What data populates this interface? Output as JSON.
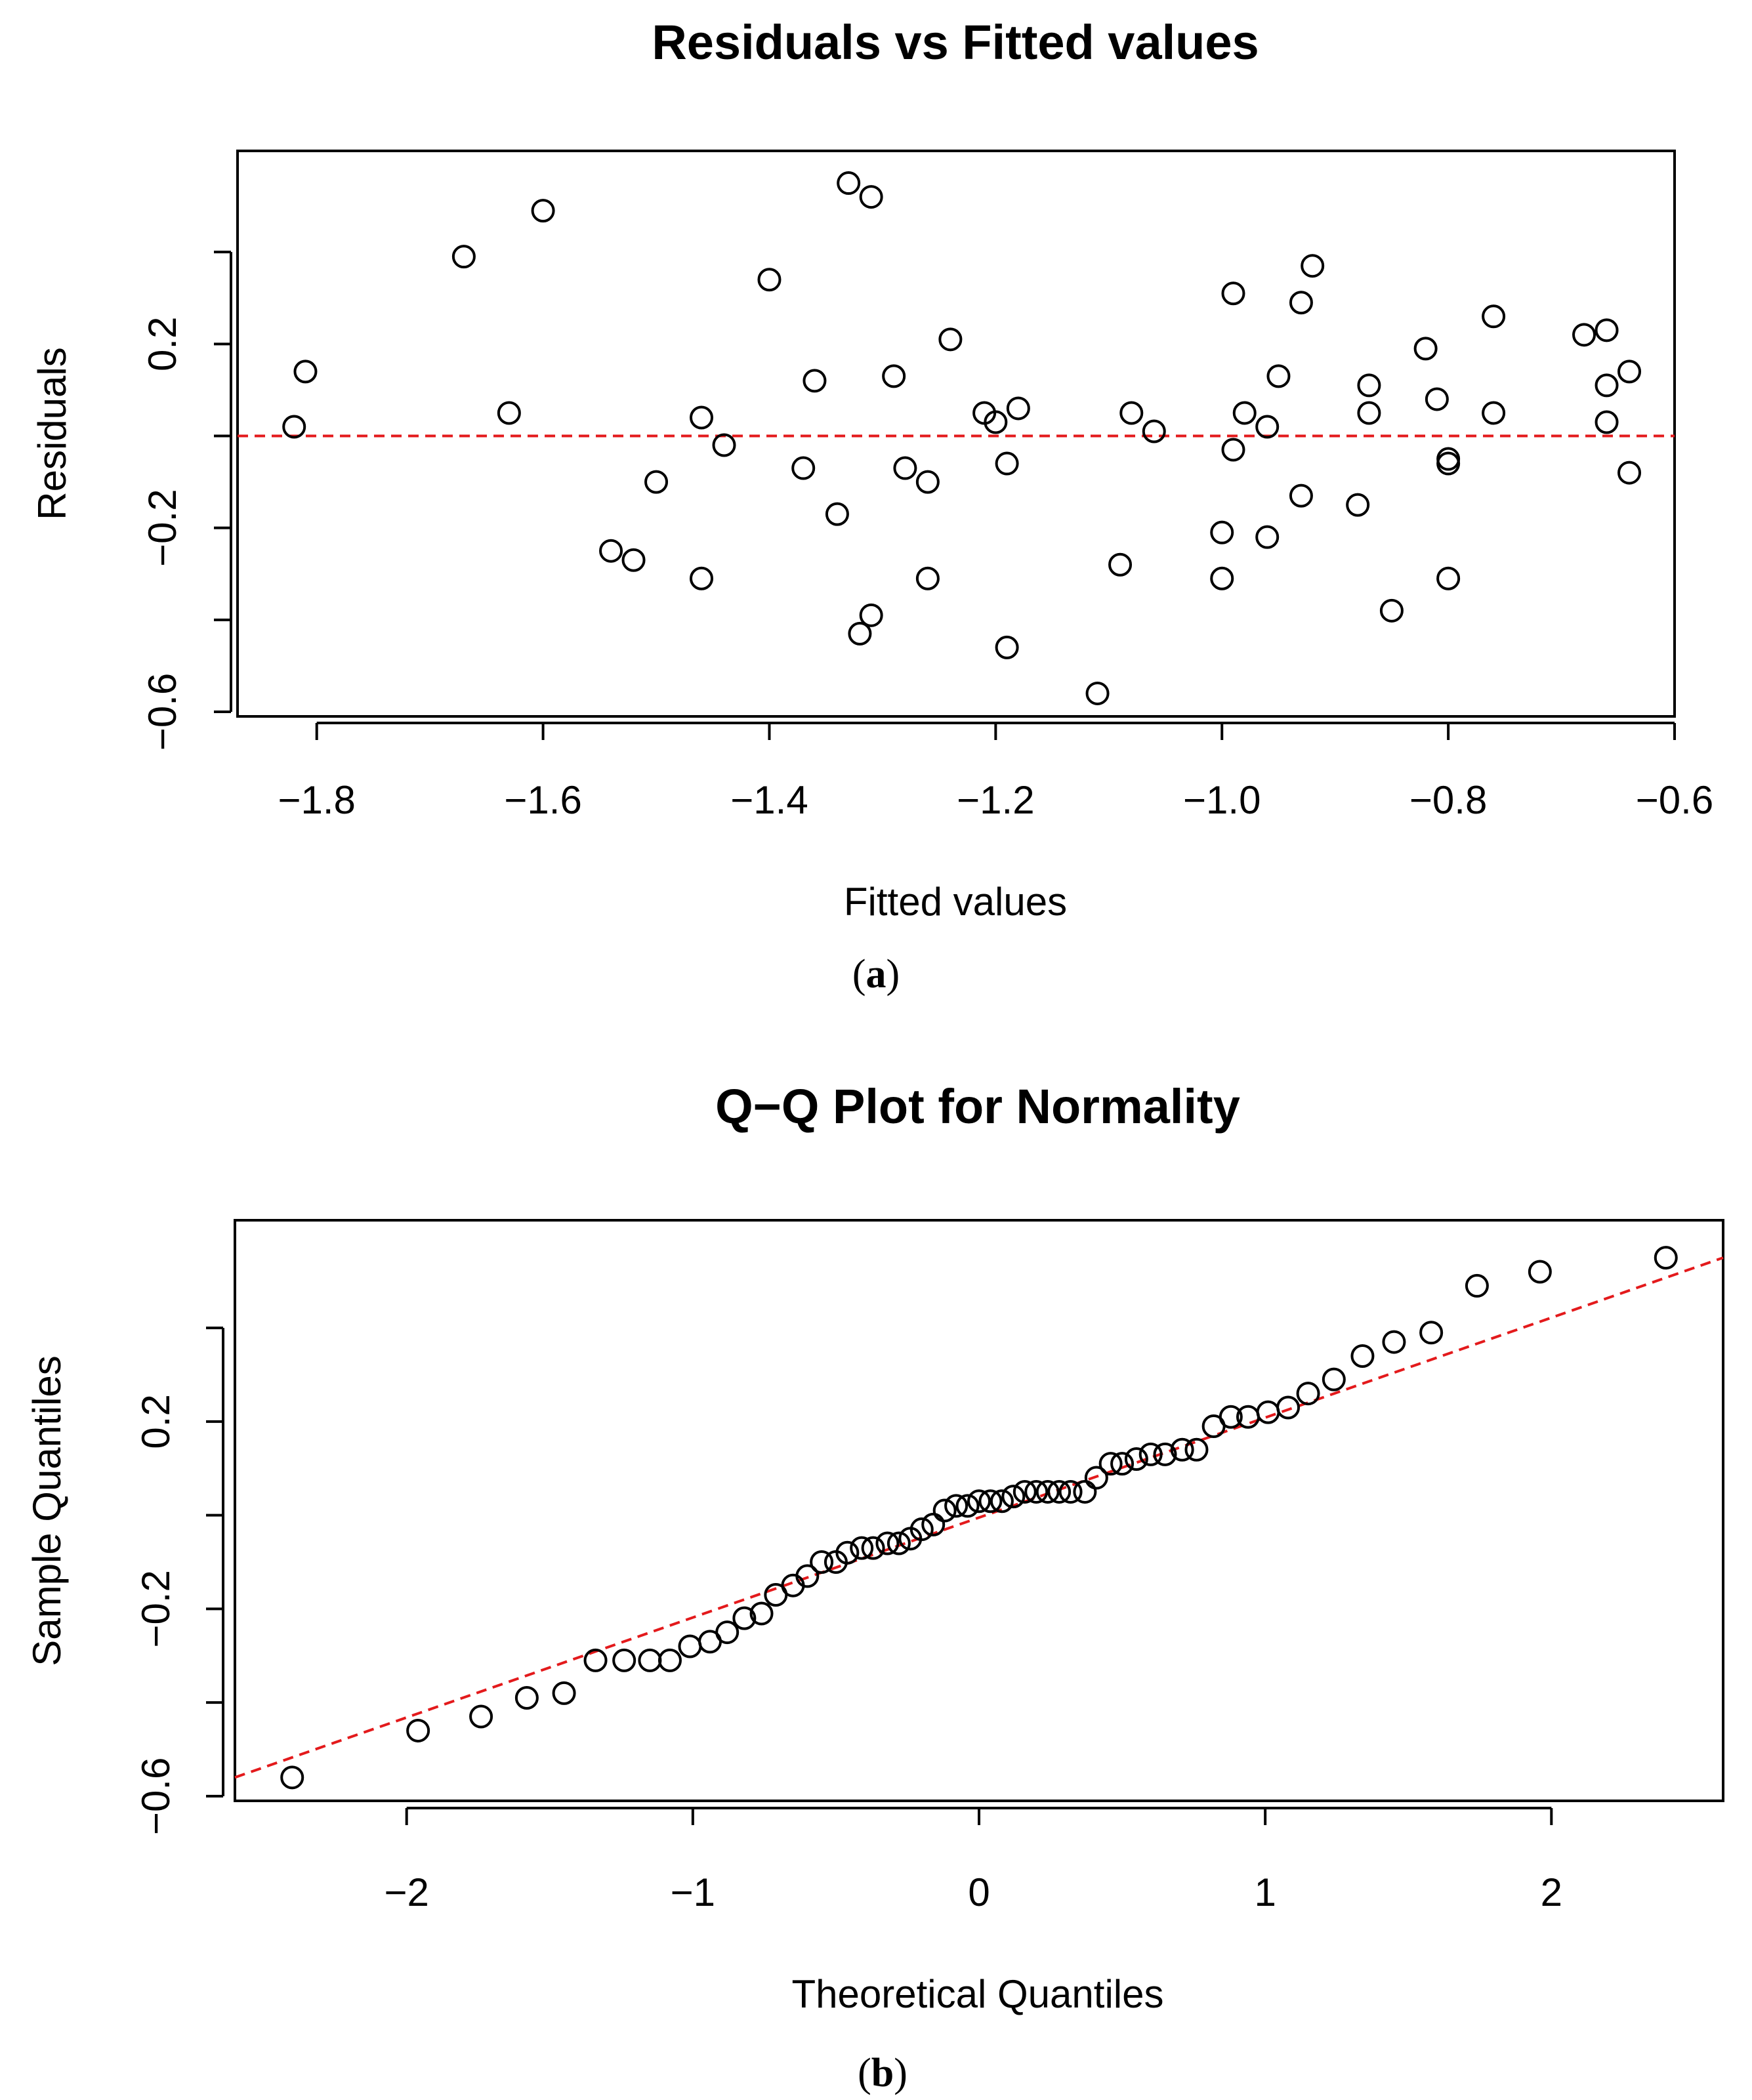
{
  "chart_data": [
    {
      "type": "scatter",
      "title": "Residuals vs Fitted values",
      "xlabel": "Fitted values",
      "ylabel": "Residuals",
      "panel_label": "a",
      "xlim": [
        -1.87,
        -0.6
      ],
      "ylim": [
        -0.6,
        0.6
      ],
      "xticks": [
        -1.8,
        -1.6,
        -1.4,
        -1.2,
        -1.0,
        -0.8,
        -0.6
      ],
      "xtick_labels": [
        "−1.8",
        "−1.6",
        "−1.4",
        "−1.2",
        "−1.0",
        "−0.8",
        "−0.6"
      ],
      "yticks": [
        -0.6,
        -0.4,
        -0.2,
        0.0,
        0.2,
        0.4
      ],
      "ytick_labels": [
        "−0.6",
        "",
        "−0.2",
        "",
        "0.2",
        ""
      ],
      "reference_line": {
        "kind": "horizontal",
        "y": 0.0,
        "color": "#e31a1c",
        "style": "dashed"
      },
      "grid": false,
      "point_color": "#000000",
      "points": [
        [
          -1.82,
          0.02
        ],
        [
          -1.81,
          0.14
        ],
        [
          -1.67,
          0.39
        ],
        [
          -1.63,
          0.05
        ],
        [
          -1.6,
          0.49
        ],
        [
          -1.54,
          -0.25
        ],
        [
          -1.52,
          -0.27
        ],
        [
          -1.5,
          -0.1
        ],
        [
          -1.46,
          0.04
        ],
        [
          -1.46,
          -0.31
        ],
        [
          -1.44,
          -0.02
        ],
        [
          -1.4,
          0.34
        ],
        [
          -1.37,
          -0.07
        ],
        [
          -1.36,
          0.12
        ],
        [
          -1.34,
          -0.17
        ],
        [
          -1.33,
          0.55
        ],
        [
          -1.32,
          -0.43
        ],
        [
          -1.31,
          0.52
        ],
        [
          -1.31,
          -0.39
        ],
        [
          -1.29,
          0.13
        ],
        [
          -1.28,
          -0.07
        ],
        [
          -1.26,
          -0.1
        ],
        [
          -1.26,
          -0.31
        ],
        [
          -1.24,
          0.21
        ],
        [
          -1.21,
          0.05
        ],
        [
          -1.2,
          0.03
        ],
        [
          -1.19,
          -0.06
        ],
        [
          -1.19,
          -0.46
        ],
        [
          -1.18,
          0.06
        ],
        [
          -1.11,
          -0.56
        ],
        [
          -1.09,
          -0.28
        ],
        [
          -1.08,
          0.05
        ],
        [
          -1.06,
          0.01
        ],
        [
          -1.0,
          -0.21
        ],
        [
          -1.0,
          -0.31
        ],
        [
          -0.99,
          0.31
        ],
        [
          -0.99,
          -0.03
        ],
        [
          -0.98,
          0.05
        ],
        [
          -0.96,
          -0.22
        ],
        [
          -0.96,
          0.02
        ],
        [
          -0.95,
          0.13
        ],
        [
          -0.93,
          0.29
        ],
        [
          -0.93,
          -0.13
        ],
        [
          -0.92,
          0.37
        ],
        [
          -0.88,
          -0.15
        ],
        [
          -0.87,
          0.11
        ],
        [
          -0.87,
          0.05
        ],
        [
          -0.85,
          -0.38
        ],
        [
          -0.82,
          0.19
        ],
        [
          -0.81,
          0.08
        ],
        [
          -0.8,
          -0.05
        ],
        [
          -0.8,
          -0.06
        ],
        [
          -0.8,
          -0.31
        ],
        [
          -0.76,
          0.26
        ],
        [
          -0.76,
          0.05
        ],
        [
          -0.68,
          0.22
        ],
        [
          -0.66,
          0.23
        ],
        [
          -0.66,
          0.03
        ],
        [
          -0.66,
          0.11
        ],
        [
          -0.64,
          -0.08
        ],
        [
          -0.64,
          0.14
        ]
      ]
    },
    {
      "type": "scatter",
      "title": "Q−Q Plot for Normality",
      "xlabel": "Theoretical Quantiles",
      "ylabel": "Sample Quantiles",
      "panel_label": "b",
      "xlim": [
        -2.6,
        2.6
      ],
      "ylim": [
        -0.6,
        0.6
      ],
      "xticks": [
        -2,
        -1,
        0,
        1,
        2
      ],
      "xtick_labels": [
        "−2",
        "−1",
        "0",
        "1",
        "2"
      ],
      "yticks": [
        -0.6,
        -0.4,
        -0.2,
        0.0,
        0.2,
        0.4
      ],
      "ytick_labels": [
        "−0.6",
        "",
        "−0.2",
        "",
        "0.2",
        ""
      ],
      "reference_line": {
        "kind": "line",
        "from": [
          -2.6,
          -0.56
        ],
        "to": [
          2.6,
          0.55
        ],
        "color": "#e31a1c",
        "style": "dashed"
      },
      "grid": false,
      "point_color": "#000000",
      "points": [
        [
          -2.4,
          -0.56
        ],
        [
          -1.96,
          -0.46
        ],
        [
          -1.74,
          -0.43
        ],
        [
          -1.58,
          -0.39
        ],
        [
          -1.45,
          -0.38
        ],
        [
          -1.34,
          -0.31
        ],
        [
          -1.24,
          -0.31
        ],
        [
          -1.15,
          -0.31
        ],
        [
          -1.08,
          -0.31
        ],
        [
          -1.01,
          -0.28
        ],
        [
          -0.94,
          -0.27
        ],
        [
          -0.88,
          -0.25
        ],
        [
          -0.82,
          -0.22
        ],
        [
          -0.76,
          -0.21
        ],
        [
          -0.71,
          -0.17
        ],
        [
          -0.65,
          -0.15
        ],
        [
          -0.6,
          -0.13
        ],
        [
          -0.55,
          -0.1
        ],
        [
          -0.5,
          -0.1
        ],
        [
          -0.46,
          -0.08
        ],
        [
          -0.41,
          -0.07
        ],
        [
          -0.37,
          -0.07
        ],
        [
          -0.32,
          -0.06
        ],
        [
          -0.28,
          -0.06
        ],
        [
          -0.24,
          -0.05
        ],
        [
          -0.2,
          -0.03
        ],
        [
          -0.16,
          -0.02
        ],
        [
          -0.12,
          0.01
        ],
        [
          -0.08,
          0.02
        ],
        [
          -0.04,
          0.02
        ],
        [
          0.0,
          0.03
        ],
        [
          0.04,
          0.03
        ],
        [
          0.08,
          0.03
        ],
        [
          0.12,
          0.04
        ],
        [
          0.16,
          0.05
        ],
        [
          0.2,
          0.05
        ],
        [
          0.24,
          0.05
        ],
        [
          0.28,
          0.05
        ],
        [
          0.32,
          0.05
        ],
        [
          0.37,
          0.05
        ],
        [
          0.41,
          0.08
        ],
        [
          0.46,
          0.11
        ],
        [
          0.5,
          0.11
        ],
        [
          0.55,
          0.12
        ],
        [
          0.6,
          0.13
        ],
        [
          0.65,
          0.13
        ],
        [
          0.71,
          0.14
        ],
        [
          0.76,
          0.14
        ],
        [
          0.82,
          0.19
        ],
        [
          0.88,
          0.21
        ],
        [
          0.94,
          0.21
        ],
        [
          1.01,
          0.22
        ],
        [
          1.08,
          0.23
        ],
        [
          1.15,
          0.26
        ],
        [
          1.24,
          0.29
        ],
        [
          1.34,
          0.34
        ],
        [
          1.45,
          0.37
        ],
        [
          1.58,
          0.39
        ],
        [
          1.74,
          0.49
        ],
        [
          1.96,
          0.52
        ],
        [
          2.4,
          0.55
        ]
      ]
    }
  ]
}
